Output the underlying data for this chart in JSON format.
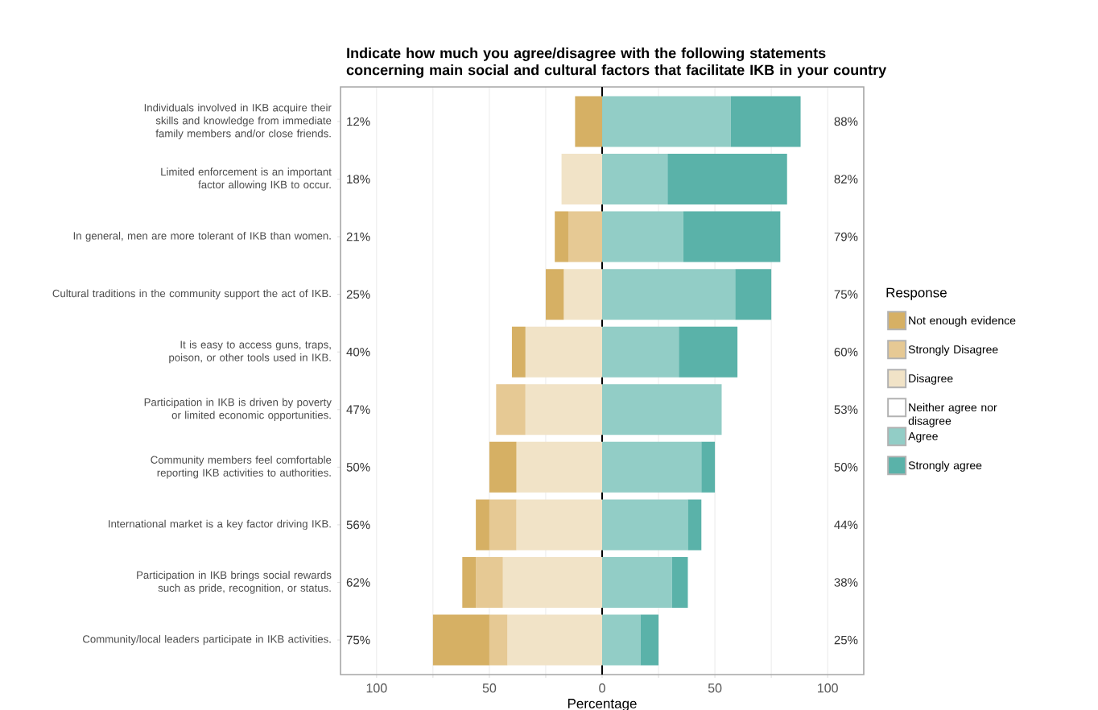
{
  "chart_data": {
    "type": "bar",
    "orientation": "horizontal",
    "stacked": true,
    "title": "Indicate how much you agree/disagree with the following statements concerning main social and cultural factors that facilitate IKB in your country",
    "xlabel": "Percentage",
    "legend_title": "Response",
    "legend": "right",
    "grid": "x",
    "categories": [
      "Individuals involved in IKB acquire their skills and knowledge from immediate family members and/or close friends.",
      "Limited enforcement is an important factor allowing IKB to occur.",
      "In general, men are more tolerant of IKB than women.",
      "Cultural traditions in the community support the act of IKB.",
      "It is easy to access guns, traps, poison, or other tools used in IKB.",
      "Participation in IKB is driven by poverty or limited economic opportunities.",
      "Community members feel comfortable reporting IKB activities to authorities.",
      "International market is a key factor driving IKB.",
      "Participation in IKB brings social rewards such as pride, recognition, or status.",
      "Community/local leaders participate in IKB activities."
    ],
    "series": [
      {
        "name": "Not enough evidence",
        "color": "#d6b064",
        "values": [
          -12,
          0,
          -6,
          -8,
          -6,
          0,
          -12,
          -6,
          -6,
          -25
        ]
      },
      {
        "name": "Strongly Disagree",
        "color": "#e6c994",
        "values": [
          0,
          0,
          -15,
          0,
          0,
          -13,
          0,
          -12,
          -12,
          -8
        ]
      },
      {
        "name": "Disagree",
        "color": "#f1e3c7",
        "values": [
          0,
          -18,
          0,
          -17,
          -34,
          -34,
          -38,
          -38,
          -44,
          -42
        ]
      },
      {
        "name": "Neither agree nor disagree",
        "color": "#ffffff",
        "values": [
          0,
          0,
          0,
          0,
          0,
          0,
          0,
          0,
          0,
          0
        ]
      },
      {
        "name": "Agree",
        "color": "#92cdc6",
        "values": [
          57,
          29,
          36,
          59,
          34,
          53,
          44,
          38,
          31,
          17
        ]
      },
      {
        "name": "Strongly agree",
        "color": "#5ab2a9",
        "values": [
          31,
          53,
          43,
          16,
          26,
          0,
          6,
          6,
          7,
          8
        ]
      }
    ],
    "xlim": [
      -116,
      116
    ],
    "xticks": [
      {
        "value": -100,
        "label": "100"
      },
      {
        "value": -75,
        "label": null
      },
      {
        "value": -50,
        "label": "50"
      },
      {
        "value": -25,
        "label": null
      },
      0,
      {
        "value": 25,
        "label": null
      },
      50,
      {
        "value": 75,
        "label": null
      },
      100
    ],
    "ref_lines": [
      {
        "axis": "x",
        "value": 0,
        "color": "#000000"
      }
    ],
    "annotations": [
      "12%",
      "88%",
      "18%",
      "82%",
      "21%",
      "79%",
      "25%",
      "75%",
      "40%",
      "60%",
      "47%",
      "53%",
      "50%",
      "50%",
      "56%",
      "44%",
      "62%",
      "38%",
      "75%",
      "25%"
    ]
  }
}
